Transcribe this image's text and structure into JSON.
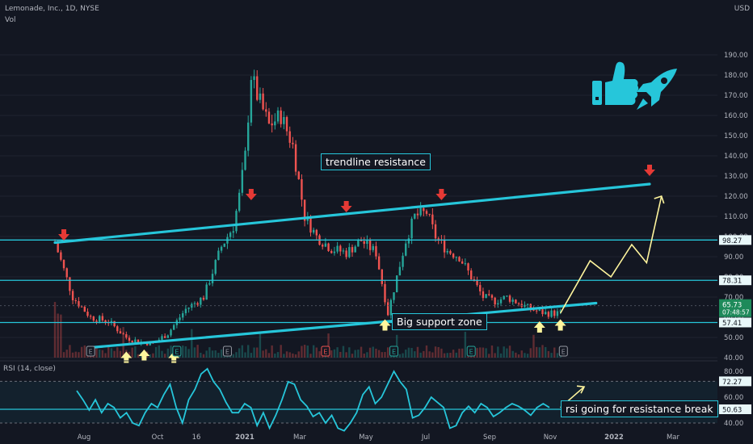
{
  "header": {
    "title": "Lemonade, Inc., 1D, NYSE",
    "vol_label": "Vol",
    "currency": "USD",
    "rsi_label": "RSI (14, close)"
  },
  "colors": {
    "background": "#131722",
    "up": "#26a69a",
    "down": "#ef5350",
    "cyan": "#26c6da",
    "yellow_arrow": "#fff59d",
    "rsi_line": "#26c6da"
  },
  "annotations": {
    "trendline_resistance": "trendline resistance",
    "big_support": "Big support zone",
    "rsi_note": "rsi going for resistance break"
  },
  "chart_data": [
    {
      "type": "candlestick",
      "title": "Lemonade, Inc., 1D, NYSE",
      "ylabel": "USD",
      "ylim": [
        32,
        202
      ],
      "x_tick_labels": [
        "Aug",
        "Oct",
        "16",
        "2021",
        "Mar",
        "May",
        "Jul",
        "Sep",
        "Nov",
        "2022",
        "Mar"
      ],
      "y_tick_labels": [
        "40.00",
        "50.00",
        "60.00",
        "70.00",
        "80.00",
        "90.00",
        "100.00",
        "110.00",
        "120.00",
        "130.00",
        "140.00",
        "150.00",
        "160.00",
        "170.00",
        "180.00",
        "190.00"
      ],
      "price_path": [
        [
          0,
          97
        ],
        [
          6,
          70
        ],
        [
          12,
          60
        ],
        [
          18,
          58
        ],
        [
          24,
          50
        ],
        [
          28,
          48
        ],
        [
          33,
          47
        ],
        [
          38,
          52
        ],
        [
          44,
          64
        ],
        [
          50,
          70
        ],
        [
          56,
          95
        ],
        [
          60,
          105
        ],
        [
          62,
          120
        ],
        [
          64,
          140
        ],
        [
          66,
          180
        ],
        [
          68,
          170
        ],
        [
          72,
          155
        ],
        [
          76,
          160
        ],
        [
          80,
          145
        ],
        [
          84,
          110
        ],
        [
          88,
          100
        ],
        [
          93,
          94
        ],
        [
          98,
          92
        ],
        [
          103,
          98
        ],
        [
          108,
          92
        ],
        [
          112,
          62
        ],
        [
          115,
          80
        ],
        [
          118,
          98
        ],
        [
          121,
          110
        ],
        [
          125,
          112
        ],
        [
          128,
          100
        ],
        [
          132,
          93
        ],
        [
          136,
          90
        ],
        [
          140,
          80
        ],
        [
          144,
          70
        ],
        [
          148,
          68
        ],
        [
          152,
          70
        ],
        [
          156,
          67
        ],
        [
          160,
          64
        ],
        [
          165,
          62
        ],
        [
          170,
          62
        ]
      ],
      "horizontal_levels": [
        {
          "name": "level-98-27",
          "value": 98.27,
          "label": "98.27"
        },
        {
          "name": "level-78-31",
          "value": 78.31,
          "label": "78.31"
        },
        {
          "name": "level-57-41",
          "value": 57.41,
          "label": "57.41"
        }
      ],
      "current_price": {
        "value": 65.73,
        "label": "65.73",
        "countdown": "07:48:57"
      },
      "trendlines": [
        {
          "name": "resistance",
          "from": [
            0,
            97
          ],
          "to": [
            200,
            126
          ]
        },
        {
          "name": "support",
          "from": [
            12,
            45
          ],
          "to": [
            182,
            67
          ]
        }
      ],
      "projection": [
        [
          170,
          62
        ],
        [
          180,
          88
        ],
        [
          187,
          80
        ],
        [
          194,
          96
        ],
        [
          199,
          87
        ],
        [
          204,
          120
        ]
      ],
      "earnings_markers": [
        12,
        41,
        58,
        91,
        114,
        140,
        171
      ],
      "down_arrows": [
        [
          3,
          98
        ],
        [
          66,
          118
        ],
        [
          98,
          112
        ],
        [
          130,
          118
        ],
        [
          200,
          130
        ]
      ],
      "up_arrows": [
        [
          24,
          43
        ],
        [
          30,
          44
        ],
        [
          40,
          43
        ],
        [
          111,
          59
        ],
        [
          163,
          58
        ],
        [
          170,
          59
        ]
      ]
    },
    {
      "type": "line",
      "title": "RSI (14, close)",
      "ylim": [
        30,
        90
      ],
      "y_tick_labels": [
        "40.00",
        "60.00",
        "80.00"
      ],
      "levels": [
        {
          "value": 72.27,
          "label": "72.27"
        },
        {
          "value": 50.63,
          "label": "50.63"
        }
      ],
      "projection": [
        [
          170,
          52
        ],
        [
          178,
          68
        ]
      ],
      "values": [
        65,
        58,
        50,
        58,
        48,
        55,
        52,
        44,
        48,
        40,
        38,
        48,
        55,
        52,
        62,
        70,
        52,
        40,
        58,
        66,
        78,
        82,
        72,
        66,
        56,
        48,
        48,
        55,
        52,
        38,
        48,
        36,
        46,
        58,
        72,
        70,
        58,
        53,
        45,
        48,
        40,
        46,
        36,
        34,
        40,
        48,
        62,
        68,
        55,
        60,
        70,
        80,
        72,
        66,
        44,
        46,
        52,
        60,
        56,
        52,
        36,
        38,
        48,
        53,
        48,
        55,
        52,
        45,
        48,
        52,
        55,
        53,
        50,
        46,
        52,
        55,
        52
      ]
    }
  ]
}
